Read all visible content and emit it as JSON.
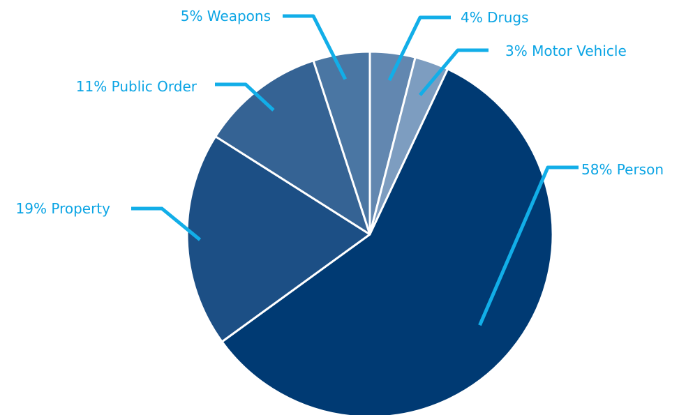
{
  "chart_data": {
    "type": "pie",
    "slices": [
      {
        "category": "Person",
        "value": 58,
        "label": "58% Person",
        "color": "#003a73"
      },
      {
        "category": "Property",
        "value": 19,
        "label": "19% Property",
        "color": "#1c4f85"
      },
      {
        "category": "Public Order",
        "value": 11,
        "label": "11% Public Order",
        "color": "#356394"
      },
      {
        "category": "Weapons",
        "value": 5,
        "label": "5% Weapons",
        "color": "#4a76a3"
      },
      {
        "category": "Drugs",
        "value": 4,
        "label": "4% Drugs",
        "color": "#6287b0"
      },
      {
        "category": "Motor Vehicle",
        "value": 3,
        "label": "3% Motor Vehicle",
        "color": "#7d9dc0"
      }
    ],
    "label_color": "#0aa4e4",
    "leader_line_color": "#12aee8",
    "slice_border_color": "#ffffff",
    "legend": "none",
    "grid": false
  }
}
